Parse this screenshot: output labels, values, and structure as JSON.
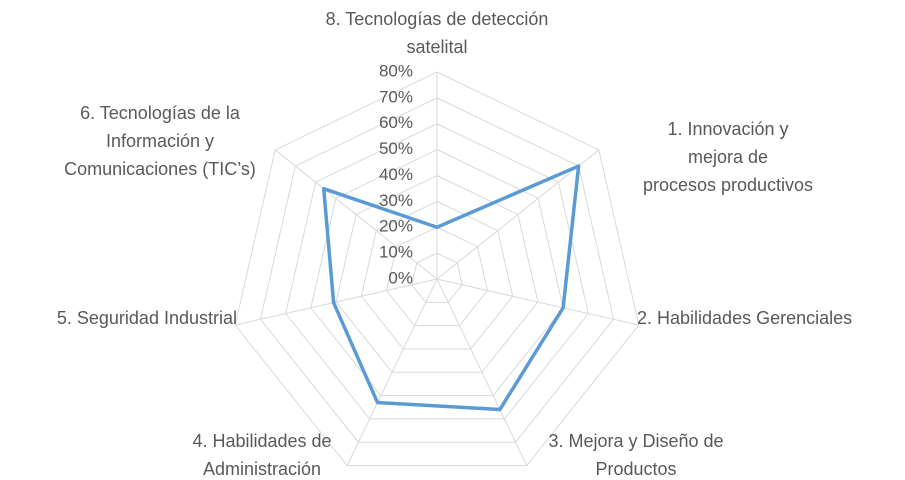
{
  "chart_data": {
    "type": "radar",
    "categories": [
      "8. Tecnologías de detección\nsatelital",
      "1. Innovación y mejora de\nprocesos productivos",
      "2. Habilidades Gerenciales",
      "3. Mejora y Diseño de\nProductos",
      "4. Habilidades de\nAdministración",
      "5. Seguridad Industrial",
      "6. Tecnologías de la\nInformación y\nComunicaciones (TIC’s)"
    ],
    "values": [
      20,
      70,
      50,
      56,
      53,
      41,
      56
    ],
    "color": "#5b9bd5",
    "ylim": [
      0,
      80
    ],
    "yticks": [
      {
        "value": 0,
        "label": "0%"
      },
      {
        "value": 10,
        "label": "10%"
      },
      {
        "value": 20,
        "label": "20%"
      },
      {
        "value": 30,
        "label": "30%"
      },
      {
        "value": 40,
        "label": "40%"
      },
      {
        "value": 50,
        "label": "50%"
      },
      {
        "value": 60,
        "label": "60%"
      },
      {
        "value": 70,
        "label": "70%"
      },
      {
        "value": 80,
        "label": "80%"
      }
    ],
    "grid": true
  }
}
